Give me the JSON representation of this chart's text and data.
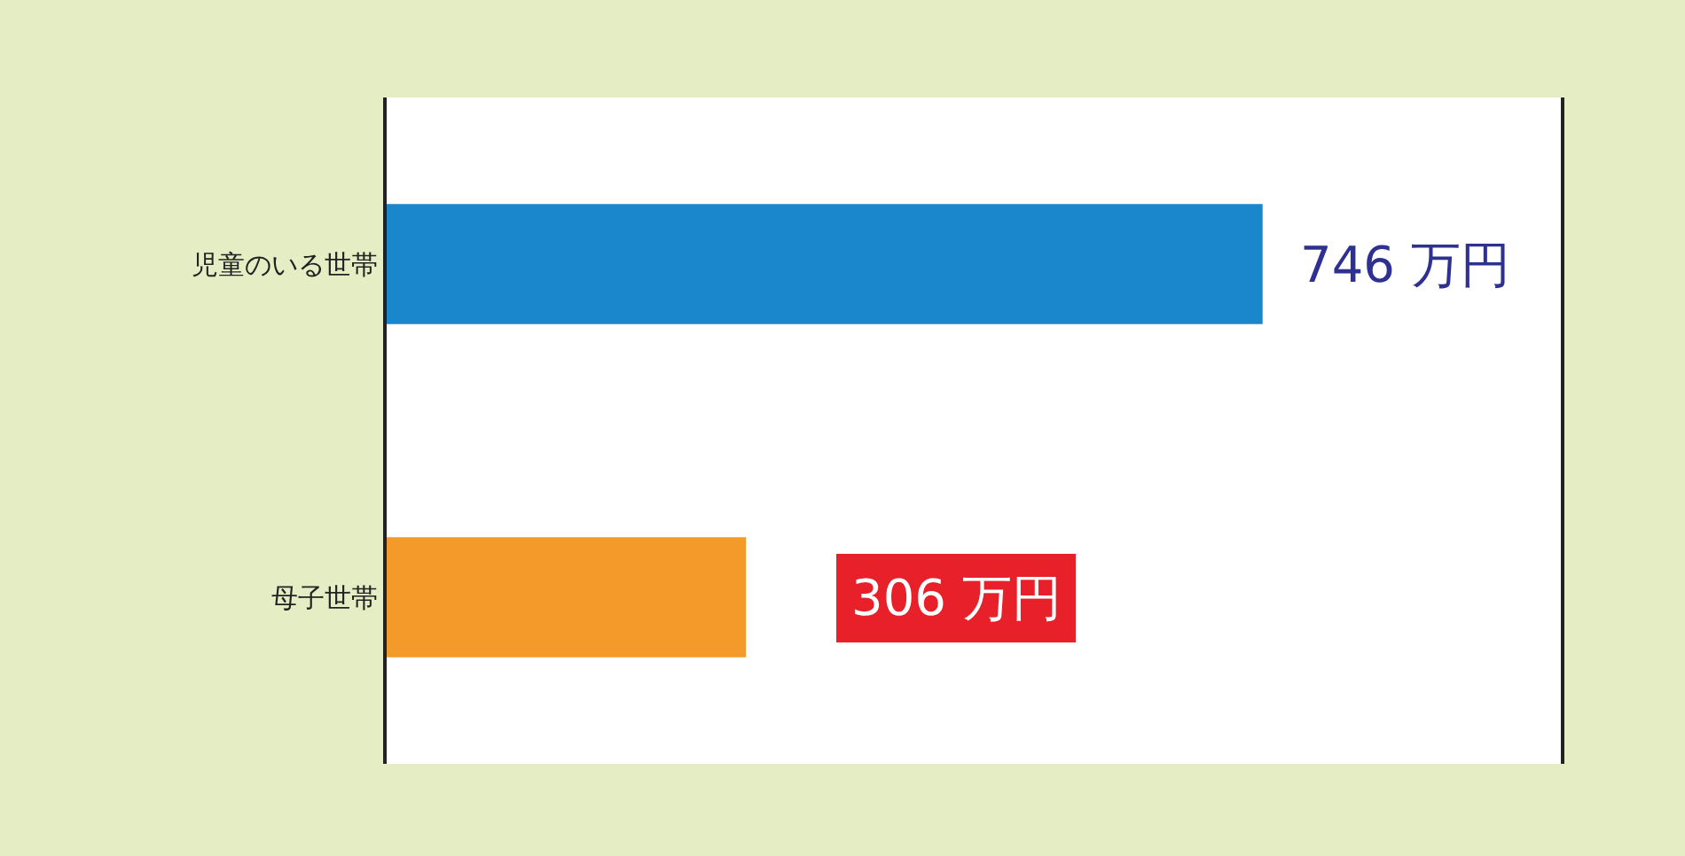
{
  "chart_data": {
    "type": "bar",
    "orientation": "horizontal",
    "categories": [
      "児童のいる世帯",
      "母子世帯"
    ],
    "values": [
      746,
      306
    ],
    "colors": [
      "#1a86cc",
      "#f39a2a"
    ],
    "value_labels": [
      "746 万円",
      "306 万円"
    ],
    "xlim": [
      0,
      1000
    ],
    "tick_labels": "y",
    "legend": false
  }
}
